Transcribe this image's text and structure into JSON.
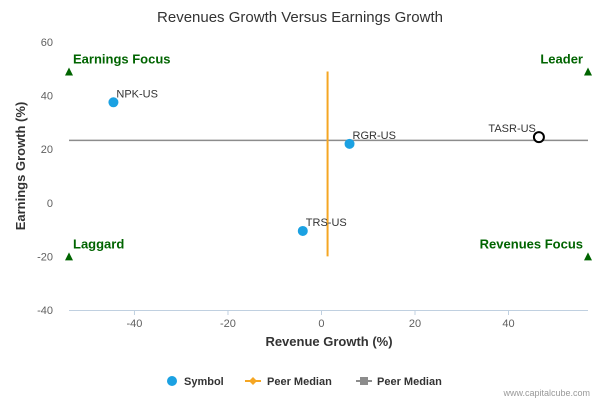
{
  "chart_data": {
    "type": "scatter",
    "title": "Revenues Growth Versus Earnings Growth",
    "xlabel": "Revenue Growth (%)",
    "ylabel": "Earnings Growth (%)",
    "xlim": [
      -54,
      57
    ],
    "ylim": [
      -40,
      60
    ],
    "x_ticks": [
      -40,
      -20,
      0,
      20,
      40
    ],
    "y_ticks": [
      -40,
      -20,
      0,
      20,
      40,
      60
    ],
    "grid": false,
    "legend_position": "bottom",
    "colors": {
      "symbol": "#1ba1e2",
      "peer_median_x": "#f5a623",
      "peer_median_y": "#8c8c8c",
      "quadrant": "#006400",
      "highlight": "#000000"
    },
    "points": [
      {
        "label": "NPK-US",
        "x": -44.5,
        "y": 37.5
      },
      {
        "label": "RGR-US",
        "x": 6,
        "y": 22
      },
      {
        "label": "TRS-US",
        "x": -4,
        "y": -10.5
      },
      {
        "label": "TASR-US",
        "x": 46.5,
        "y": 24.5,
        "highlight": true
      }
    ],
    "peer_median_x": {
      "value": 1.3,
      "y_range": [
        -20,
        49
      ]
    },
    "peer_median_y": {
      "value": 23.3,
      "x_range": [
        -54,
        57
      ]
    },
    "quadrants": [
      {
        "label": "Earnings Focus",
        "x": -54,
        "y": 49,
        "align": "left"
      },
      {
        "label": "Leader",
        "x": 57,
        "y": 49,
        "align": "right"
      },
      {
        "label": "Laggard",
        "x": -54,
        "y": -20,
        "align": "left"
      },
      {
        "label": "Revenues Focus",
        "x": 57,
        "y": -20,
        "align": "right"
      }
    ],
    "legend": [
      "Symbol",
      "Peer Median",
      "Peer Median"
    ],
    "credit": "www.capitalcube.com"
  }
}
